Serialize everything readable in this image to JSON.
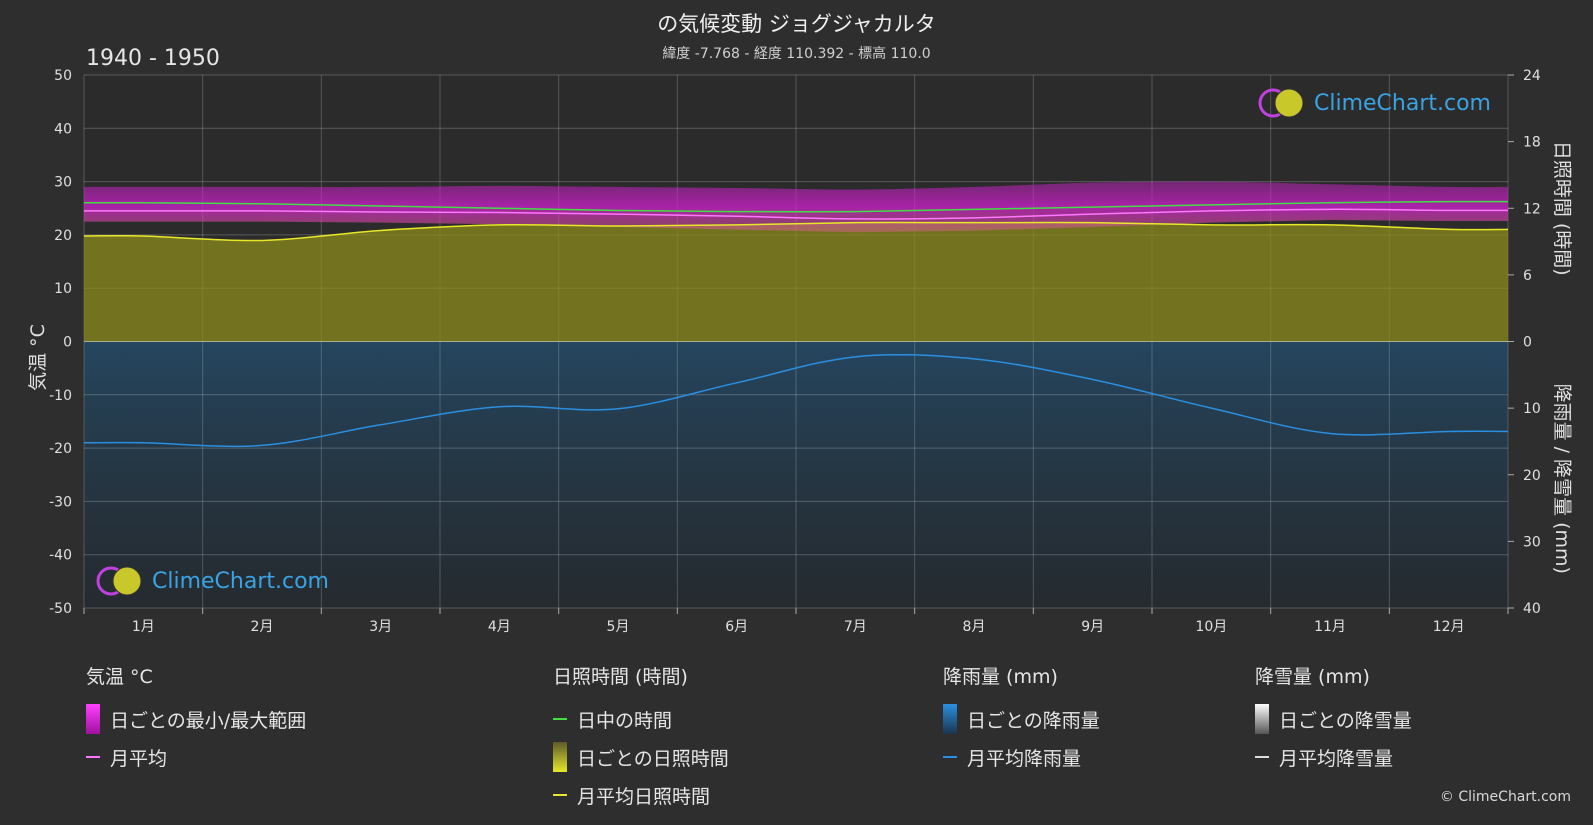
{
  "header": {
    "title": "の気候変動 ジョグジャカルタ",
    "subtitle": "緯度 -7.768 - 経度 110.392 - 標高 110.0",
    "period": "1940 - 1950"
  },
  "watermark": "ClimeChart.com",
  "copyright": "© ClimeChart.com",
  "legend": {
    "temp": {
      "title": "気温 °C",
      "range": "日ごとの最小/最大範囲",
      "mean": "月平均"
    },
    "sun": {
      "title": "日照時間 (時間)",
      "daylight": "日中の時間",
      "daily": "日ごとの日照時間",
      "mean": "月平均日照時間"
    },
    "rain": {
      "title": "降雨量 (mm)",
      "daily": "日ごとの降雨量",
      "mean": "月平均降雨量"
    },
    "snow": {
      "title": "降雪量 (mm)",
      "daily": "日ごとの降雪量",
      "mean": "月平均降雪量"
    }
  },
  "colors": {
    "background": "#2e2e2e",
    "temp_range": "#d020d0",
    "temp_mean": "#ff77ff",
    "daylight": "#44dd44",
    "sunshine_fill": "#8c8c1c",
    "sunshine_mean": "#e8e82a",
    "rain_fill": "#1f5f8f",
    "rain_mean": "#2a8fe0",
    "snow": "#dddddd"
  },
  "chart_data": {
    "type": "line",
    "categories": [
      "1月",
      "2月",
      "3月",
      "4月",
      "5月",
      "6月",
      "7月",
      "8月",
      "9月",
      "10月",
      "11月",
      "12月"
    ],
    "axes": {
      "left": {
        "label": "気温 °C",
        "range": [
          -50,
          50
        ],
        "ticks": [
          "50",
          "40",
          "30",
          "20",
          "10",
          "0",
          "-10",
          "-20",
          "-30",
          "-40",
          "-50"
        ]
      },
      "right_top": {
        "label": "日照時間 (時間)",
        "range": [
          0,
          24
        ],
        "ticks": [
          "24",
          "18",
          "12",
          "6",
          "0"
        ]
      },
      "right_bottom": {
        "label": "降雨量 / 降雪量 (mm)",
        "range": [
          0,
          40
        ],
        "ticks": [
          "0",
          "10",
          "20",
          "30",
          "40"
        ]
      }
    },
    "grid": true,
    "series": [
      {
        "name": "日中の時間",
        "unit": "h",
        "values": [
          12.5,
          12.4,
          12.2,
          12.0,
          11.8,
          11.7,
          11.7,
          11.9,
          12.1,
          12.3,
          12.5,
          12.6
        ]
      },
      {
        "name": "月平均",
        "unit": "°C",
        "values": [
          24.5,
          24.5,
          24.3,
          24.2,
          23.9,
          23.5,
          23.0,
          23.2,
          23.9,
          24.5,
          24.8,
          24.6
        ]
      },
      {
        "name": "月平均日照時間",
        "unit": "h",
        "values": [
          9.5,
          9.1,
          10.0,
          10.5,
          10.4,
          10.5,
          10.7,
          10.7,
          10.7,
          10.5,
          10.5,
          10.1
        ]
      },
      {
        "name": "月平均降雨量",
        "unit": "mm",
        "values": [
          15.2,
          15.6,
          12.5,
          9.8,
          10.1,
          6.2,
          2.3,
          2.6,
          5.7,
          10.0,
          13.8,
          13.5
        ]
      },
      {
        "name": "日ごとの最小/最大範囲",
        "unit": "°C",
        "low": [
          22.5,
          22.5,
          22.3,
          22.0,
          21.5,
          21.0,
          20.5,
          20.8,
          21.5,
          22.3,
          22.8,
          22.6
        ],
        "high": [
          29.0,
          29.0,
          29.0,
          29.2,
          29.0,
          28.8,
          28.5,
          29.0,
          29.8,
          30.0,
          29.5,
          29.0
        ]
      }
    ]
  }
}
